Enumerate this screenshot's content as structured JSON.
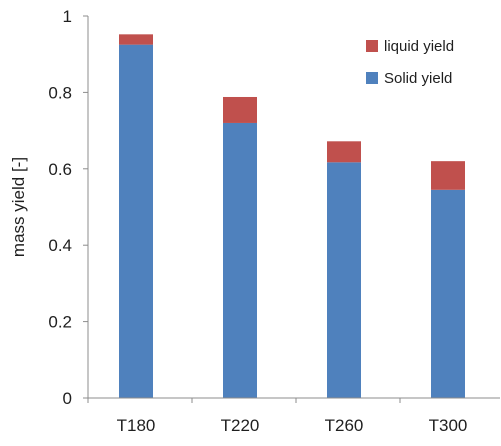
{
  "chart_data": {
    "type": "bar",
    "stacked": true,
    "title": "",
    "xlabel": "",
    "ylabel": "mass  yield [-]",
    "ylim": [
      0,
      1
    ],
    "yticks": [
      0,
      0.2,
      0.4,
      0.6,
      0.8,
      1
    ],
    "ytick_labels": [
      "0",
      "0.2",
      "0.4",
      "0.6",
      "0.8",
      "1"
    ],
    "categories": [
      "T180",
      "T220",
      "T260",
      "T300"
    ],
    "series": [
      {
        "name": "Solid yield",
        "values": [
          0.925,
          0.72,
          0.617,
          0.545
        ],
        "color": "#4f81bd"
      },
      {
        "name": "liquid yield",
        "values": [
          0.027,
          0.068,
          0.055,
          0.075
        ],
        "color": "#c0504d"
      }
    ],
    "legend": {
      "position": "top-right",
      "entries": [
        "liquid yield",
        "Solid yield"
      ]
    },
    "grid": false
  }
}
